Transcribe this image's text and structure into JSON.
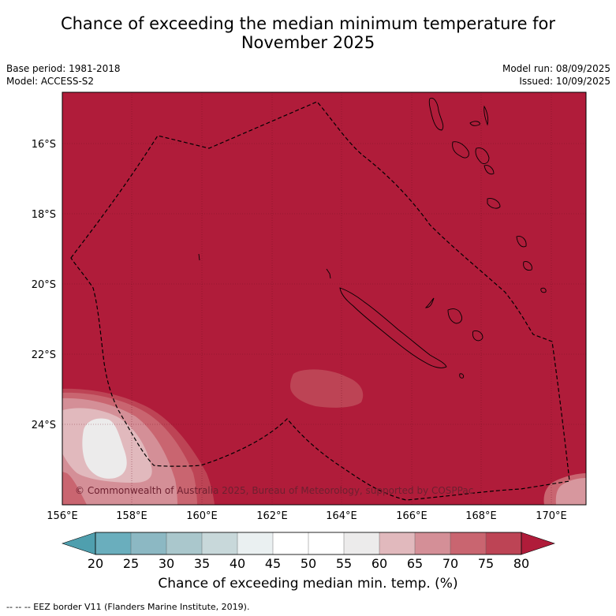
{
  "title_line1": "Chance of exceeding the median minimum temperature for",
  "title_line2": "November 2025",
  "base_period": "Base period: 1981-2018",
  "model": "Model: ACCESS-S2",
  "model_run": "Model run: 08/09/2025",
  "issued": "Issued: 10/09/2025",
  "copyright": "© Commonwealth of Australia 2025, Bureau of Meteorology, supported by COSPPac",
  "lon_ticks": [
    "156°E",
    "158°E",
    "160°E",
    "162°E",
    "164°E",
    "166°E",
    "168°E",
    "170°E"
  ],
  "lat_ticks": [
    "16°S",
    "18°S",
    "20°S",
    "22°S",
    "24°S"
  ],
  "colorbar": {
    "ticks": [
      "20",
      "25",
      "30",
      "35",
      "40",
      "45",
      "50",
      "55",
      "60",
      "65",
      "70",
      "75",
      "80"
    ],
    "colors": [
      "#6aaebd",
      "#8cb8c3",
      "#aac7cc",
      "#c8d8da",
      "#eaf0f1",
      "#ffffff",
      "#ffffff",
      "#ecebeb",
      "#e1b9bd",
      "#d48f97",
      "#c96570",
      "#bd4455"
    ],
    "low_extend_color": "#4f9fae",
    "high_extend_color": "#b01c3a",
    "label": "Chance of exceeding median min. temp. (%)"
  },
  "footnote": "--  --  -- EEZ border V11 (Flanders Marine Institute, 2019).",
  "map_colors": {
    "background": "#b01c3a",
    "level_75": "#bd4455",
    "level_70": "#c96570",
    "level_65": "#d48f97",
    "level_60": "#e1b9bd",
    "level_55": "#ecebeb"
  }
}
